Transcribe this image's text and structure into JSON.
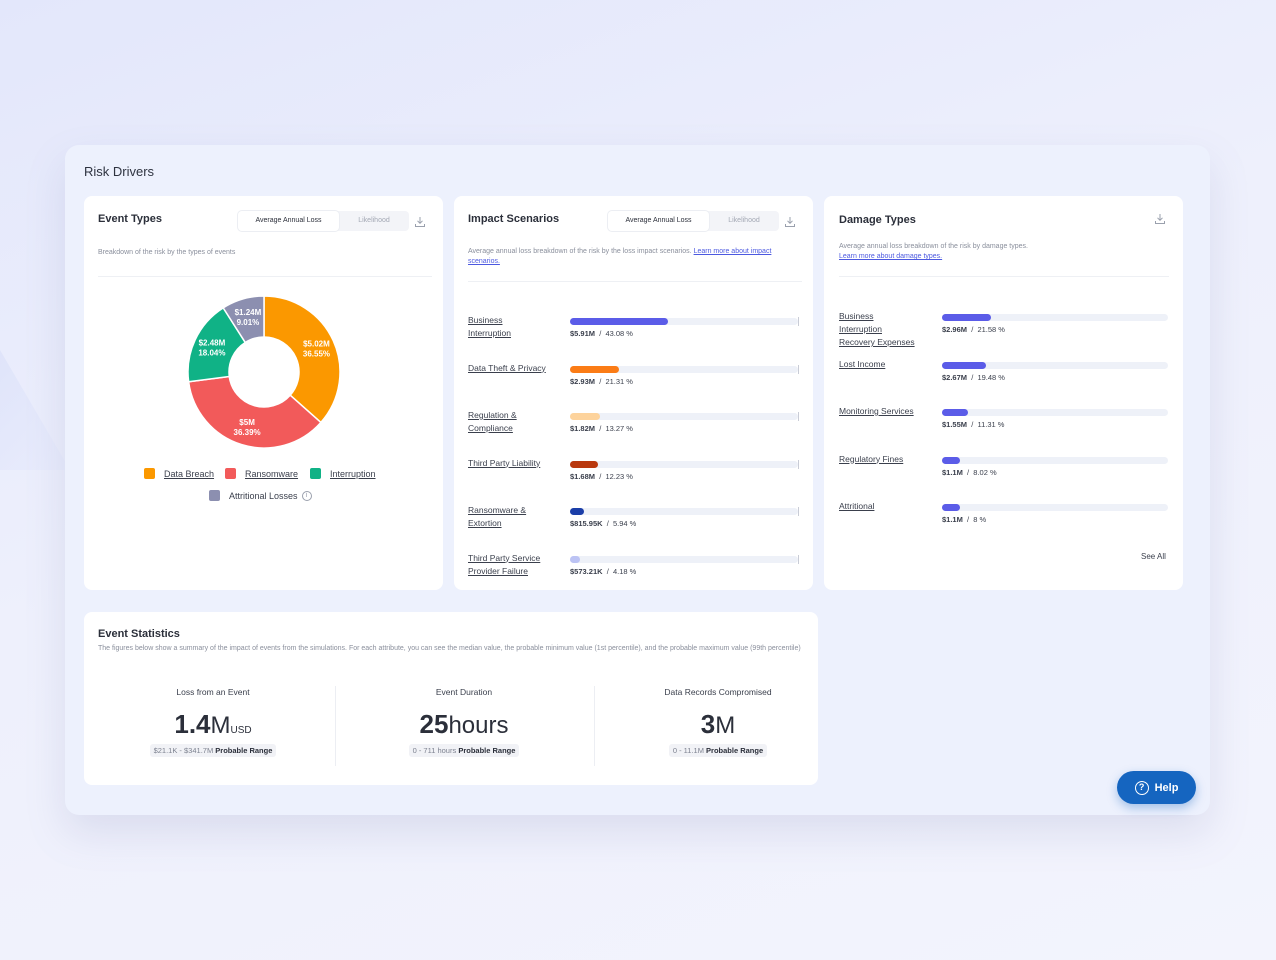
{
  "panel": {
    "title": "Risk Drivers"
  },
  "event_types": {
    "title": "Event Types",
    "toggle": {
      "active": "Average Annual Loss",
      "inactive": "Likelihood"
    },
    "description": "Breakdown of the risk by the types of events",
    "slices": [
      {
        "name": "Data Breach",
        "value_label": "$5.02M",
        "pct_label": "36.55%",
        "pct": 36.55,
        "color": "#fb9800"
      },
      {
        "name": "Ransomware",
        "value_label": "$5M",
        "pct_label": "36.39%",
        "pct": 36.39,
        "color": "#f25a5a"
      },
      {
        "name": "Interruption",
        "value_label": "$2.48M",
        "pct_label": "18.04%",
        "pct": 18.04,
        "color": "#10b286"
      },
      {
        "name": "Attritional Losses",
        "value_label": "$1.24M",
        "pct_label": "9.01%",
        "pct": 9.01,
        "color": "#8c8fb0"
      }
    ],
    "legend": [
      "Data Breach",
      "Ransomware",
      "Interruption",
      "Attritional Losses"
    ],
    "info_icon": "i"
  },
  "impact_scenarios": {
    "title": "Impact Scenarios",
    "toggle": {
      "active": "Average Annual Loss",
      "inactive": "Likelihood"
    },
    "description": "Average annual loss breakdown of the risk by the loss impact scenarios.",
    "link": "Learn more about impact scenarios.",
    "rows": [
      {
        "label_lines": [
          "Business",
          "Interruption"
        ],
        "value": "$5.91M",
        "pct": "43.08 %",
        "fraction": 0.4308,
        "color": "#5b5ce8"
      },
      {
        "label_lines": [
          "Data Theft & Privacy"
        ],
        "value": "$2.93M",
        "pct": "21.31 %",
        "fraction": 0.2131,
        "color": "#fb7c16"
      },
      {
        "label_lines": [
          "Regulation &",
          "Compliance"
        ],
        "value": "$1.82M",
        "pct": "13.27 %",
        "fraction": 0.1327,
        "color": "#fdd39c"
      },
      {
        "label_lines": [
          "Third Party Liability"
        ],
        "value": "$1.68M",
        "pct": "12.23 %",
        "fraction": 0.1223,
        "color": "#b9380e"
      },
      {
        "label_lines": [
          "Ransomware &",
          "Extortion"
        ],
        "value": "$815.95K",
        "pct": "5.94 %",
        "fraction": 0.0594,
        "color": "#1b3ea8"
      },
      {
        "label_lines": [
          "Third Party Service",
          "Provider Failure"
        ],
        "value": "$573.21K",
        "pct": "4.18 %",
        "fraction": 0.0418,
        "color": "#bcc3f4"
      }
    ]
  },
  "damage_types": {
    "title": "Damage Types",
    "description": "Average annual loss breakdown of the risk by damage types.",
    "link": "Learn more about damage types.",
    "rows": [
      {
        "label_lines": [
          "Business",
          "Interruption",
          "Recovery Expenses"
        ],
        "value": "$2.96M",
        "pct": "21.58 %",
        "fraction": 0.2158,
        "color": "#5b5ce8"
      },
      {
        "label_lines": [
          "Lost Income"
        ],
        "value": "$2.67M",
        "pct": "19.48 %",
        "fraction": 0.1948,
        "color": "#5b5ce8"
      },
      {
        "label_lines": [
          "Monitoring Services"
        ],
        "value": "$1.55M",
        "pct": "11.31 %",
        "fraction": 0.1131,
        "color": "#5b5ce8"
      },
      {
        "label_lines": [
          "Regulatory Fines"
        ],
        "value": "$1.1M",
        "pct": "8.02 %",
        "fraction": 0.0802,
        "color": "#5b5ce8"
      },
      {
        "label_lines": [
          "Attritional"
        ],
        "value": "$1.1M",
        "pct": "8 %",
        "fraction": 0.08,
        "color": "#5b5ce8"
      }
    ],
    "see_all": "See All"
  },
  "event_statistics": {
    "title": "Event Statistics",
    "description": "The figures below show a summary of the impact of events from the simulations. For each attribute, you can see the median value, the probable minimum value (1st percentile), and the probable maximum value (99th percentile)",
    "stats": [
      {
        "label": "Loss from an Event",
        "number": "1.4",
        "unit": "M",
        "currency": "USD",
        "range": "$21.1K - $341.7M",
        "range_label": "Probable Range"
      },
      {
        "label": "Event Duration",
        "number": "25",
        "unit": "hours",
        "currency": "",
        "range": "0 - 711 hours",
        "range_label": "Probable Range"
      },
      {
        "label": "Data Records Compromised",
        "number": "3",
        "unit": "M",
        "currency": "",
        "range": "0 - 11.1M",
        "range_label": "Probable Range"
      }
    ]
  },
  "help_button": {
    "label": "Help",
    "icon": "?"
  },
  "icons": {
    "download": "download-icon",
    "info": "info-icon",
    "help": "question-circle-icon"
  },
  "colors": {
    "accent": "#4c59e0",
    "help_bg": "#1565c0"
  }
}
